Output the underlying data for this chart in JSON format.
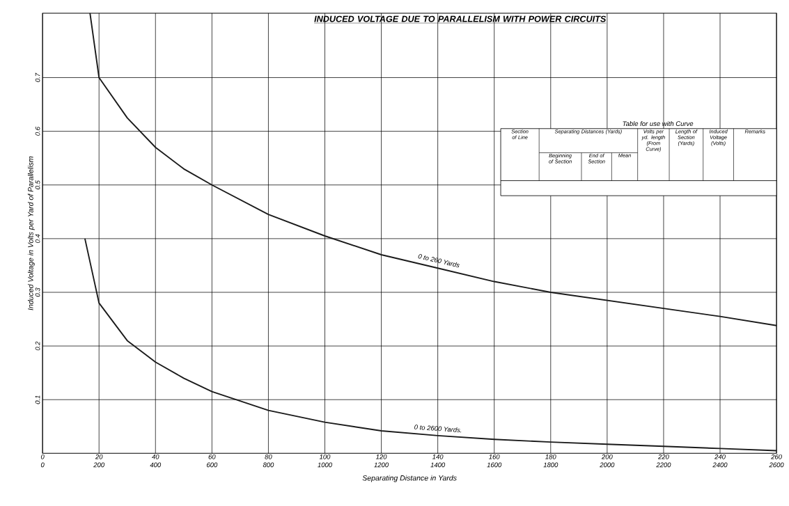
{
  "chart_data": {
    "type": "line",
    "title": "INDUCED VOLTAGE DUE TO PARALLELISM WITH POWER CIRCUITS",
    "xlabel": "Separating Distance in Yards",
    "ylabel": "Induced Voltage in Volts per Yard of Parallelism",
    "xlim": [
      0,
      260
    ],
    "xticks": [
      0,
      20,
      40,
      60,
      80,
      100,
      120,
      140,
      160,
      180,
      200,
      220,
      240,
      260
    ],
    "x2lim": [
      0,
      2600
    ],
    "x2ticks": [
      0,
      200,
      400,
      600,
      800,
      1000,
      1200,
      1400,
      1600,
      1800,
      2000,
      2200,
      2400,
      2600
    ],
    "ylim": [
      0,
      0.82
    ],
    "yticks": [
      0.1,
      0.2,
      0.3,
      0.4,
      0.5,
      0.6,
      0.7
    ],
    "grid": true,
    "series": [
      {
        "name": "0 to 260 Yards",
        "color": "#1a1a1a",
        "x": [
          16.8,
          20,
          30,
          40,
          50,
          60,
          80,
          100,
          120,
          140,
          160,
          180,
          200,
          220,
          240,
          260
        ],
        "values": [
          0.82,
          0.7,
          0.625,
          0.57,
          0.53,
          0.5,
          0.445,
          0.405,
          0.37,
          0.345,
          0.32,
          0.3,
          0.285,
          0.27,
          0.255,
          0.238
        ]
      },
      {
        "name": "0 to 2600 Yards.",
        "color": "#1a1a1a",
        "axis": "x2",
        "x": [
          150,
          200,
          300,
          400,
          500,
          600,
          800,
          1000,
          1200,
          1400,
          1600,
          1800,
          2000,
          2200,
          2400,
          2600
        ],
        "values": [
          0.4,
          0.28,
          0.21,
          0.17,
          0.14,
          0.115,
          0.08,
          0.058,
          0.042,
          0.033,
          0.026,
          0.021,
          0.017,
          0.013,
          0.009,
          0.005
        ]
      }
    ],
    "annotations": [
      "Table for use with Curve",
      "Section of Line",
      "Separating Distances (Yards)",
      "Beginning of Section",
      "End of Section",
      "Mean",
      "Volts per yd. length (From Curve)",
      "Length of Section (Yards)",
      "Induced Voltage (Volts)",
      "Remarks"
    ]
  }
}
